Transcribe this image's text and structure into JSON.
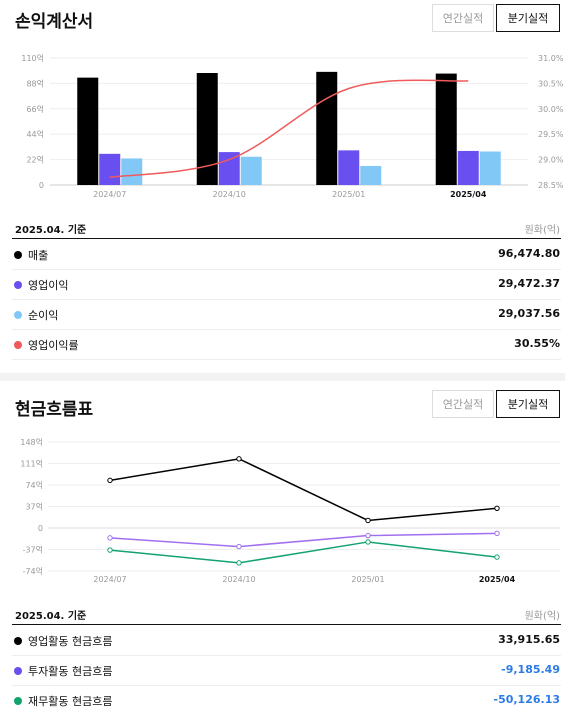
{
  "income": {
    "title": "손익계산서",
    "toggle_annual": "연간실적",
    "toggle_quarterly": "분기실적",
    "basis": "2025.04. 기준",
    "unit": "원화(억)",
    "rows": [
      {
        "label": "매출",
        "value": "96,474.80",
        "color": "#000000"
      },
      {
        "label": "영업이익",
        "value": "29,472.37",
        "color": "#6a4ff0"
      },
      {
        "label": "순이익",
        "value": "29,037.56",
        "color": "#82c8f7"
      },
      {
        "label": "영업이익률",
        "value": "30.55%",
        "color": "#f05a5a"
      }
    ]
  },
  "cashflow": {
    "title": "현금흐름표",
    "toggle_annual": "연간실적",
    "toggle_quarterly": "분기실적",
    "basis": "2025.04. 기준",
    "unit": "원화(억)",
    "rows": [
      {
        "label": "영업활동 현금흐름",
        "value": "33,915.65",
        "color": "#000000",
        "value_color": "#111111"
      },
      {
        "label": "투자활동 현금흐름",
        "value": "-9,185.49",
        "color": "#6a4ff0",
        "value_color": "#2d7be5"
      },
      {
        "label": "재무활동 현금흐름",
        "value": "-50,126.13",
        "color": "#13a36f",
        "value_color": "#2d7be5"
      }
    ]
  },
  "chart_data": [
    {
      "type": "bar",
      "categories": [
        "2024/07",
        "2024/10",
        "2025/01",
        "2025/04"
      ],
      "series": [
        {
          "name": "매출",
          "values": [
            93,
            97,
            98,
            96.5
          ],
          "color": "#000000"
        },
        {
          "name": "영업이익",
          "values": [
            27,
            28.5,
            30,
            29.5
          ],
          "color": "#6a4ff0"
        },
        {
          "name": "순이익",
          "values": [
            23,
            24.5,
            16.5,
            29
          ],
          "color": "#82c8f7"
        }
      ],
      "line_series": {
        "name": "영업이익률",
        "values": [
          28.65,
          29.0,
          30.4,
          30.55
        ],
        "color": "#f05a5a",
        "axis": "right"
      },
      "y_ticks_left": [
        "110억",
        "88억",
        "66억",
        "44억",
        "22억",
        "0"
      ],
      "y_tick_values_left": [
        110,
        88,
        66,
        44,
        22,
        0
      ],
      "ylim_left": [
        0,
        110
      ],
      "y_ticks_right": [
        "31.0%",
        "30.5%",
        "30.0%",
        "29.5%",
        "29.0%",
        "28.5%"
      ],
      "y_tick_values_right": [
        31.0,
        30.5,
        30.0,
        29.5,
        29.0,
        28.5
      ],
      "ylim_right": [
        28.5,
        31.0
      ]
    },
    {
      "type": "line",
      "categories": [
        "2024/07",
        "2024/10",
        "2025/01",
        "2025/04"
      ],
      "series": [
        {
          "name": "영업활동 현금흐름",
          "values": [
            82,
            119,
            13,
            33.9
          ],
          "color": "#000000"
        },
        {
          "name": "투자활동 현금흐름",
          "values": [
            -17,
            -32,
            -13,
            -9.2
          ],
          "color": "#a070f0"
        },
        {
          "name": "재무활동 현금흐름",
          "values": [
            -38,
            -60,
            -24,
            -50.1
          ],
          "color": "#13a36f"
        }
      ],
      "y_ticks": [
        "148억",
        "111억",
        "74억",
        "37억",
        "0",
        "-37억",
        "-74억"
      ],
      "y_tick_values": [
        148,
        111,
        74,
        37,
        0,
        -37,
        -74
      ],
      "ylim": [
        -74,
        148
      ]
    }
  ]
}
